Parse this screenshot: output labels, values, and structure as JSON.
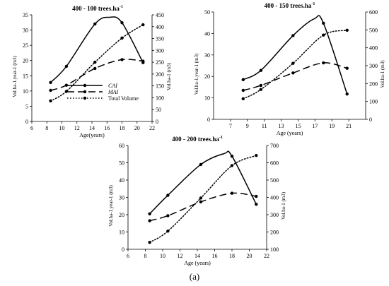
{
  "caption": "(a)",
  "legend": {
    "cai": "CAI",
    "mai": "MAI",
    "total": "Total Volume"
  },
  "chart_data": [
    {
      "type": "line",
      "title": "400 - 100 trees.ha",
      "title_superscript": "-1",
      "xlabel": "Age(years)",
      "ylabel_left": "Vol.ha-1.year-1 (m3)",
      "ylabel_right": "Vol.ha-1 (m3)",
      "xlim": [
        6,
        22
      ],
      "xticks": [
        6,
        8,
        10,
        12,
        14,
        16,
        18,
        20,
        22
      ],
      "ylim_left": [
        0,
        35
      ],
      "yticks_left": [
        0,
        5,
        10,
        15,
        20,
        25,
        30,
        35
      ],
      "ylim_right": [
        0,
        450
      ],
      "yticks_right": [
        0,
        50,
        100,
        150,
        200,
        250,
        300,
        350,
        400,
        450
      ],
      "legend_position": "bottom-left",
      "series": [
        {
          "name": "CAI",
          "style": "solid",
          "axis": "left",
          "points": [
            [
              8.5,
              12.8
            ],
            [
              10.6,
              18.1
            ],
            [
              14.4,
              32.0
            ],
            [
              18.0,
              32.4
            ],
            [
              20.8,
              19.3
            ]
          ],
          "peak": [
            16.4,
            34.2
          ]
        },
        {
          "name": "MAI",
          "style": "dashed",
          "axis": "left",
          "points": [
            [
              8.5,
              10.2
            ],
            [
              10.6,
              11.9
            ],
            [
              14.4,
              17.4
            ],
            [
              18.0,
              20.3
            ],
            [
              20.8,
              19.8
            ]
          ]
        },
        {
          "name": "Total Volume",
          "style": "dotted",
          "axis": "right",
          "points": [
            [
              8.5,
              87
            ],
            [
              10.6,
              127
            ],
            [
              14.4,
              250
            ],
            [
              18.0,
              352
            ],
            [
              20.8,
              408
            ]
          ]
        }
      ]
    },
    {
      "type": "line",
      "title": "400  - 150 trees.ha",
      "title_superscript": "-1",
      "xlabel": "Age (years)",
      "ylabel_left": "Vol.ha-1.year-1 (m3)",
      "ylabel_right": "Vol.ha-1 (m3)",
      "xlim": [
        5,
        23
      ],
      "xticks": [
        7,
        9,
        11,
        13,
        15,
        17,
        19,
        21
      ],
      "ylim_left": [
        0,
        50
      ],
      "yticks_left": [
        0,
        10,
        20,
        30,
        40,
        50
      ],
      "ylim_right": [
        0,
        600
      ],
      "yticks_right": [
        0,
        100,
        200,
        300,
        400,
        500,
        600
      ],
      "series": [
        {
          "name": "CAI",
          "style": "solid",
          "axis": "left",
          "points": [
            [
              8.5,
              18.5
            ],
            [
              10.6,
              22.8
            ],
            [
              14.4,
              39.0
            ],
            [
              18.0,
              44.8
            ],
            [
              20.8,
              11.8
            ]
          ],
          "peak": [
            16.9,
            46.8
          ]
        },
        {
          "name": "MAI",
          "style": "dashed",
          "axis": "left",
          "points": [
            [
              8.5,
              13.5
            ],
            [
              10.6,
              15.8
            ],
            [
              14.4,
              21.6
            ],
            [
              18.0,
              26.3
            ],
            [
              20.8,
              23.8
            ]
          ]
        },
        {
          "name": "Total Volume",
          "style": "dotted",
          "axis": "right",
          "points": [
            [
              8.5,
              115
            ],
            [
              10.6,
              167
            ],
            [
              14.4,
              313
            ],
            [
              18.0,
              471
            ],
            [
              20.8,
              498
            ]
          ]
        }
      ]
    },
    {
      "type": "line",
      "title": "400 - 200 trees.ha",
      "title_superscript": "-1",
      "xlabel": "Age (years)",
      "ylabel_left": "Vol.ha-1.year-1 (m3)",
      "ylabel_right": "Vol.ha-1 (m3)",
      "xlim": [
        6,
        22
      ],
      "xticks": [
        6,
        8,
        10,
        12,
        14,
        16,
        18,
        20,
        22
      ],
      "ylim_left": [
        0,
        60
      ],
      "yticks_left": [
        0,
        10,
        20,
        30,
        40,
        50,
        60
      ],
      "ylim_right": [
        100,
        700
      ],
      "yticks_right": [
        100,
        200,
        300,
        400,
        500,
        600,
        700
      ],
      "series": [
        {
          "name": "CAI",
          "style": "solid",
          "axis": "left",
          "points": [
            [
              8.5,
              20.5
            ],
            [
              10.6,
              31.2
            ],
            [
              14.4,
              49.0
            ],
            [
              18.0,
              53.8
            ],
            [
              20.8,
              26.0
            ]
          ],
          "peak": [
            17.1,
            55.3
          ]
        },
        {
          "name": "MAI",
          "style": "dashed",
          "axis": "left",
          "points": [
            [
              8.5,
              16.5
            ],
            [
              10.6,
              19.4
            ],
            [
              14.4,
              27.4
            ],
            [
              18.0,
              32.4
            ],
            [
              20.8,
              30.6
            ]
          ]
        },
        {
          "name": "Total Volume",
          "style": "dotted",
          "axis": "right",
          "points": [
            [
              8.5,
              140
            ],
            [
              10.6,
              205
            ],
            [
              14.4,
              396
            ],
            [
              18.0,
              584
            ],
            [
              20.8,
              642
            ]
          ]
        }
      ]
    }
  ]
}
